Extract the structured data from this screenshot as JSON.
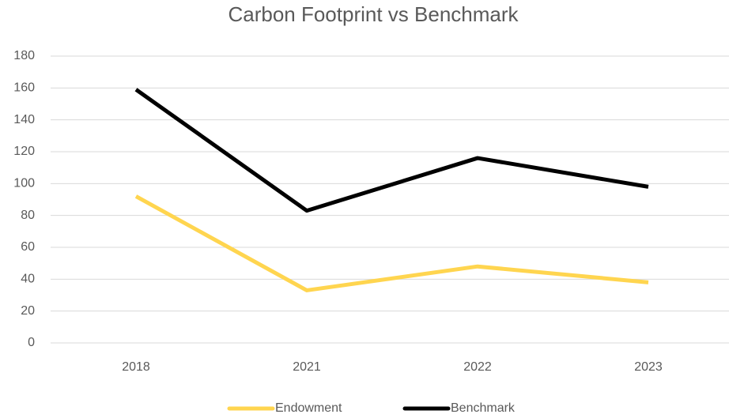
{
  "chart_data": {
    "type": "line",
    "title": "Carbon Footprint vs Benchmark",
    "categories": [
      "2018",
      "2021",
      "2022",
      "2023"
    ],
    "series": [
      {
        "name": "Endowment",
        "color": "#ffd54f",
        "values": [
          92,
          33,
          48,
          38
        ]
      },
      {
        "name": "Benchmark",
        "color": "#000000",
        "values": [
          159,
          83,
          116,
          98
        ]
      }
    ],
    "ylim": [
      0,
      180
    ],
    "yticks": [
      0,
      20,
      40,
      60,
      80,
      100,
      120,
      140,
      160,
      180
    ],
    "grid": true,
    "legend": "bottom"
  }
}
